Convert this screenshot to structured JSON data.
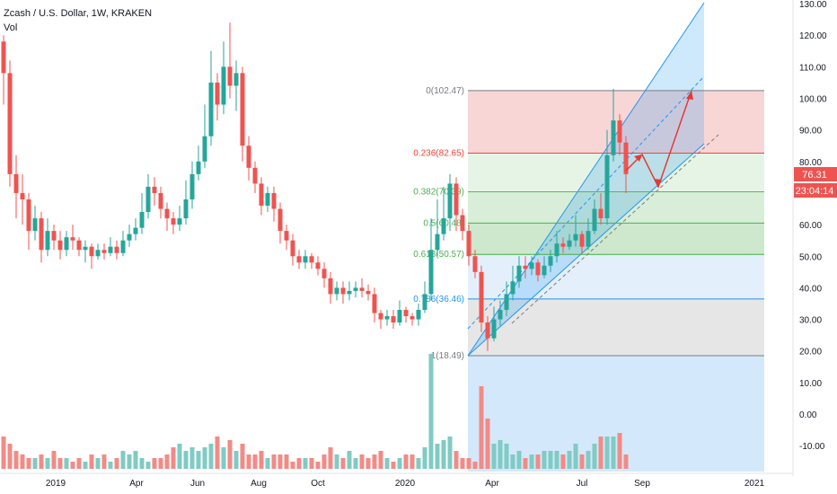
{
  "header": {
    "title": "Zcash / U.S. Dollar, 1W, KRAKEN",
    "volume_label": "Vol"
  },
  "price_tags": {
    "last_price": "76.31",
    "countdown": "23:04:14",
    "color": "#ef5350"
  },
  "colors": {
    "up": "#26a69a",
    "down": "#ef5350",
    "vol_up": "#80cbc4",
    "vol_down": "#f28b86",
    "channel": "#2196f3",
    "arrow": "#e53935"
  },
  "chart_data": {
    "type": "candlestick",
    "y_ticks": [
      "130.00",
      "120.00",
      "110.00",
      "100.00",
      "90.00",
      "80.00",
      "70.00",
      "60.00",
      "50.00",
      "40.00",
      "30.00",
      "20.00",
      "10.00",
      "0.00",
      "-10.00"
    ],
    "x_ticks": [
      "2019",
      "Apr",
      "Jun",
      "Aug",
      "Oct",
      "2020",
      "Apr",
      "Jul",
      "Sep",
      "2021"
    ],
    "ylim": [
      -18,
      130
    ],
    "fib_levels": [
      {
        "label": "0(102.47)",
        "value": 102.47,
        "color": "#787b86"
      },
      {
        "label": "0.236(82.65)",
        "value": 82.65,
        "color": "#f44336"
      },
      {
        "label": "0.382(70.39)",
        "value": 70.39,
        "color": "#4caf50"
      },
      {
        "label": "0.5(60.48)",
        "value": 60.48,
        "color": "#4caf50"
      },
      {
        "label": "0.618(50.57)",
        "value": 50.57,
        "color": "#4caf50"
      },
      {
        "label": "0.786(36.46)",
        "value": 36.46,
        "color": "#2196f3"
      },
      {
        "label": "1(18.49)",
        "value": 18.49,
        "color": "#787b86"
      }
    ],
    "candles": [
      [
        118,
        108,
        120,
        98
      ],
      [
        108,
        76,
        112,
        72
      ],
      [
        76,
        70,
        82,
        62
      ],
      [
        70,
        68,
        76,
        60
      ],
      [
        68,
        58,
        70,
        52
      ],
      [
        58,
        62,
        66,
        55
      ],
      [
        62,
        52,
        64,
        48
      ],
      [
        52,
        58,
        62,
        50
      ],
      [
        58,
        55,
        60,
        52
      ],
      [
        55,
        52,
        58,
        49
      ],
      [
        52,
        56,
        58,
        50
      ],
      [
        56,
        55,
        60,
        52
      ],
      [
        55,
        52,
        56,
        50
      ],
      [
        52,
        53,
        55,
        48
      ],
      [
        53,
        50,
        54,
        46
      ],
      [
        50,
        52,
        54,
        49
      ],
      [
        52,
        51,
        54,
        49
      ],
      [
        51,
        53,
        56,
        50
      ],
      [
        53,
        51,
        55,
        49
      ],
      [
        51,
        55,
        58,
        50
      ],
      [
        55,
        57,
        60,
        53
      ],
      [
        57,
        59,
        62,
        55
      ],
      [
        59,
        64,
        70,
        57
      ],
      [
        64,
        72,
        76,
        62
      ],
      [
        72,
        70,
        75,
        66
      ],
      [
        70,
        65,
        72,
        62
      ],
      [
        65,
        62,
        67,
        58
      ],
      [
        62,
        60,
        64,
        57
      ],
      [
        60,
        62,
        66,
        58
      ],
      [
        62,
        68,
        74,
        60
      ],
      [
        68,
        76,
        80,
        65
      ],
      [
        76,
        80,
        85,
        74
      ],
      [
        80,
        88,
        98,
        78
      ],
      [
        88,
        105,
        115,
        85
      ],
      [
        105,
        98,
        108,
        93
      ],
      [
        98,
        110,
        118,
        95
      ],
      [
        110,
        104,
        124,
        100
      ],
      [
        104,
        108,
        112,
        96
      ],
      [
        108,
        85,
        110,
        80
      ],
      [
        85,
        78,
        88,
        74
      ],
      [
        78,
        73,
        80,
        70
      ],
      [
        73,
        66,
        75,
        63
      ],
      [
        66,
        70,
        72,
        64
      ],
      [
        70,
        65,
        72,
        61
      ],
      [
        65,
        58,
        67,
        54
      ],
      [
        58,
        55,
        60,
        52
      ],
      [
        55,
        50,
        57,
        47
      ],
      [
        50,
        48,
        52,
        46
      ],
      [
        48,
        50,
        52,
        46
      ],
      [
        50,
        48,
        51,
        46
      ],
      [
        48,
        46,
        50,
        44
      ],
      [
        46,
        43,
        48,
        40
      ],
      [
        43,
        38,
        45,
        35
      ],
      [
        38,
        40,
        42,
        36
      ],
      [
        40,
        38,
        42,
        35
      ],
      [
        38,
        39,
        42,
        36
      ],
      [
        39,
        40,
        42,
        37
      ],
      [
        40,
        39,
        43,
        37
      ],
      [
        39,
        38,
        41,
        36
      ],
      [
        38,
        32,
        40,
        29
      ],
      [
        32,
        30,
        33,
        27
      ],
      [
        30,
        31,
        33,
        28
      ],
      [
        31,
        29,
        33,
        27
      ],
      [
        29,
        33,
        36,
        28
      ],
      [
        33,
        31,
        34,
        29
      ],
      [
        31,
        30,
        32,
        28
      ],
      [
        30,
        33,
        35,
        28
      ],
      [
        33,
        38,
        42,
        32
      ],
      [
        38,
        52,
        62,
        36
      ],
      [
        52,
        57,
        68,
        50
      ],
      [
        57,
        62,
        72,
        55
      ],
      [
        62,
        73,
        76,
        58
      ],
      [
        73,
        63,
        75,
        58
      ],
      [
        63,
        58,
        65,
        55
      ],
      [
        58,
        50,
        60,
        47
      ],
      [
        50,
        45,
        52,
        43
      ],
      [
        45,
        29,
        47,
        26
      ],
      [
        29,
        24,
        31,
        20
      ],
      [
        24,
        30,
        34,
        23
      ],
      [
        30,
        33,
        36,
        28
      ],
      [
        33,
        38,
        42,
        31
      ],
      [
        38,
        42,
        47,
        36
      ],
      [
        42,
        47,
        50,
        40
      ],
      [
        47,
        46,
        50,
        43
      ],
      [
        46,
        48,
        50,
        44
      ],
      [
        48,
        44,
        49,
        42
      ],
      [
        44,
        47,
        50,
        43
      ],
      [
        47,
        50,
        52,
        45
      ],
      [
        50,
        54,
        58,
        48
      ],
      [
        54,
        53,
        56,
        51
      ],
      [
        53,
        55,
        57,
        52
      ],
      [
        55,
        57,
        63,
        53
      ],
      [
        57,
        53,
        58,
        51
      ],
      [
        53,
        58,
        62,
        52
      ],
      [
        58,
        65,
        68,
        57
      ],
      [
        65,
        62,
        70,
        60
      ],
      [
        62,
        82,
        90,
        60
      ],
      [
        82,
        93,
        103,
        80
      ],
      [
        93,
        86,
        95,
        82
      ],
      [
        86,
        76,
        88,
        70
      ]
    ],
    "volumes": [
      9,
      7,
      5,
      4,
      3,
      3,
      4,
      3,
      5,
      3,
      3,
      2,
      3,
      2,
      4,
      3,
      4,
      2,
      3,
      5,
      4,
      5,
      3,
      2,
      3,
      3,
      4,
      6,
      7,
      5,
      6,
      5,
      6,
      7,
      9,
      6,
      8,
      5,
      7,
      4,
      4,
      5,
      3,
      4,
      4,
      4,
      2,
      3,
      3,
      3,
      2,
      4,
      6,
      4,
      3,
      5,
      3,
      4,
      3,
      4,
      5,
      3,
      2,
      3,
      4,
      4,
      3,
      6,
      32,
      7,
      8,
      9,
      5,
      3,
      3,
      2,
      23,
      14,
      7,
      8,
      7,
      4,
      5,
      3,
      4,
      4,
      5,
      5,
      5,
      4,
      5,
      7,
      4,
      5,
      7,
      9,
      9,
      9,
      10,
      4
    ]
  }
}
